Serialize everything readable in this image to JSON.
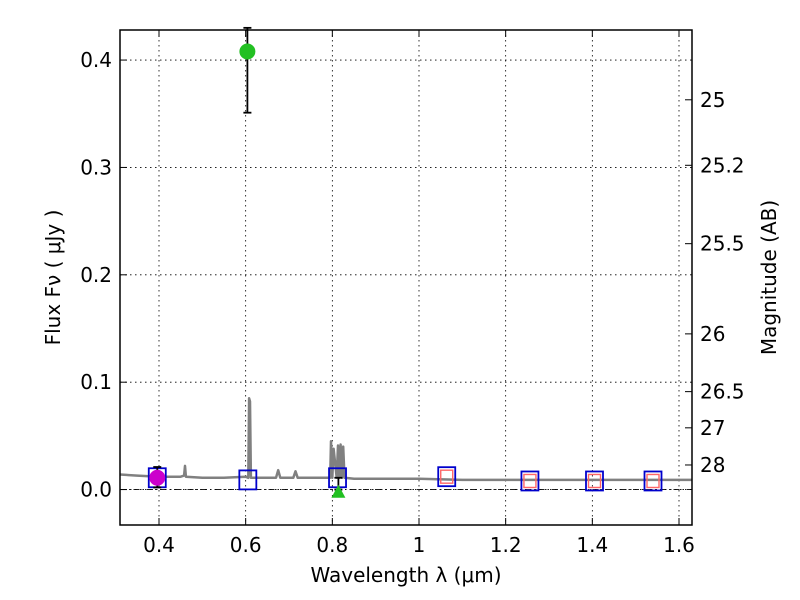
{
  "chart_data": {
    "type": "scatter",
    "xlabel": "Wavelength  λ (μm)",
    "ylabel": "Flux  Fν  ( μJy )",
    "ylabel_right": "Magnitude (AB)",
    "xlim": [
      0.31,
      1.63
    ],
    "ylim": [
      -0.033,
      0.428
    ],
    "xticks": [
      0.4,
      0.6,
      0.8,
      1.0,
      1.2,
      1.4,
      1.6
    ],
    "xtick_labels": [
      "0.4",
      "0.6",
      "0.8",
      "1",
      "1.2",
      "1.4",
      "1.6"
    ],
    "yticks": [
      0.0,
      0.1,
      0.2,
      0.3,
      0.4
    ],
    "ytick_labels": [
      "0.0",
      "0.1",
      "0.2",
      "0.3",
      "0.4"
    ],
    "right_ticks": [
      {
        "label": "25",
        "flux": 0.363
      },
      {
        "label": "25.2",
        "flux": 0.302
      },
      {
        "label": "25.5",
        "flux": 0.229
      },
      {
        "label": "26",
        "flux": 0.145
      },
      {
        "label": "26.5",
        "flux": 0.0912
      },
      {
        "label": "27",
        "flux": 0.0575
      },
      {
        "label": "28",
        "flux": 0.0229
      }
    ],
    "grid": true,
    "series": [
      {
        "name": "model spectrum",
        "kind": "line",
        "color": "#808080",
        "x": [
          0.31,
          0.35,
          0.4,
          0.45,
          0.458,
          0.46,
          0.462,
          0.5,
          0.55,
          0.6,
          0.606,
          0.608,
          0.61,
          0.612,
          0.65,
          0.67,
          0.675,
          0.68,
          0.7,
          0.71,
          0.715,
          0.72,
          0.75,
          0.795,
          0.797,
          0.8,
          0.803,
          0.81,
          0.813,
          0.816,
          0.819,
          0.822,
          0.825,
          0.828,
          0.85,
          0.9,
          1.0,
          1.1,
          1.2,
          1.3,
          1.4,
          1.5,
          1.6,
          1.63
        ],
        "y": [
          0.014,
          0.013,
          0.012,
          0.012,
          0.013,
          0.022,
          0.012,
          0.011,
          0.011,
          0.012,
          0.011,
          0.085,
          0.082,
          0.011,
          0.011,
          0.011,
          0.018,
          0.011,
          0.011,
          0.011,
          0.017,
          0.011,
          0.011,
          0.011,
          0.045,
          0.011,
          0.038,
          0.011,
          0.041,
          0.011,
          0.042,
          0.011,
          0.04,
          0.011,
          0.01,
          0.01,
          0.01,
          0.009,
          0.009,
          0.009,
          0.009,
          0.009,
          0.009,
          0.009
        ]
      },
      {
        "name": "photometry (blue squares)",
        "kind": "square-open",
        "color": "#0000cc",
        "x": [
          0.396,
          0.605,
          0.812,
          1.064,
          1.256,
          1.405,
          1.54
        ],
        "y": [
          0.011,
          0.009,
          0.011,
          0.012,
          0.008,
          0.008,
          0.008
        ]
      },
      {
        "name": "model photometry (red squares)",
        "kind": "square-open-small",
        "color": "#ff6666",
        "x": [
          1.064,
          1.256,
          1.405,
          1.54
        ],
        "y": [
          0.012,
          0.008,
          0.008,
          0.008
        ]
      },
      {
        "name": "green detection",
        "kind": "circle",
        "color": "#22c022",
        "x": [
          0.604
        ],
        "y": [
          0.408
        ],
        "yerr_low": [
          0.351
        ],
        "yerr_high": [
          0.43
        ]
      },
      {
        "name": "magenta point",
        "kind": "circle",
        "color": "#cc00cc",
        "x": [
          0.396
        ],
        "y": [
          0.011
        ],
        "yerr_low": [
          0.002
        ],
        "yerr_high": [
          0.021
        ]
      },
      {
        "name": "green triangle",
        "kind": "triangle",
        "color": "#22c022",
        "x": [
          0.814
        ],
        "y": [
          -0.002
        ],
        "yerr_low": [
          0.0
        ],
        "yerr_high": [
          0.011
        ]
      }
    ]
  }
}
